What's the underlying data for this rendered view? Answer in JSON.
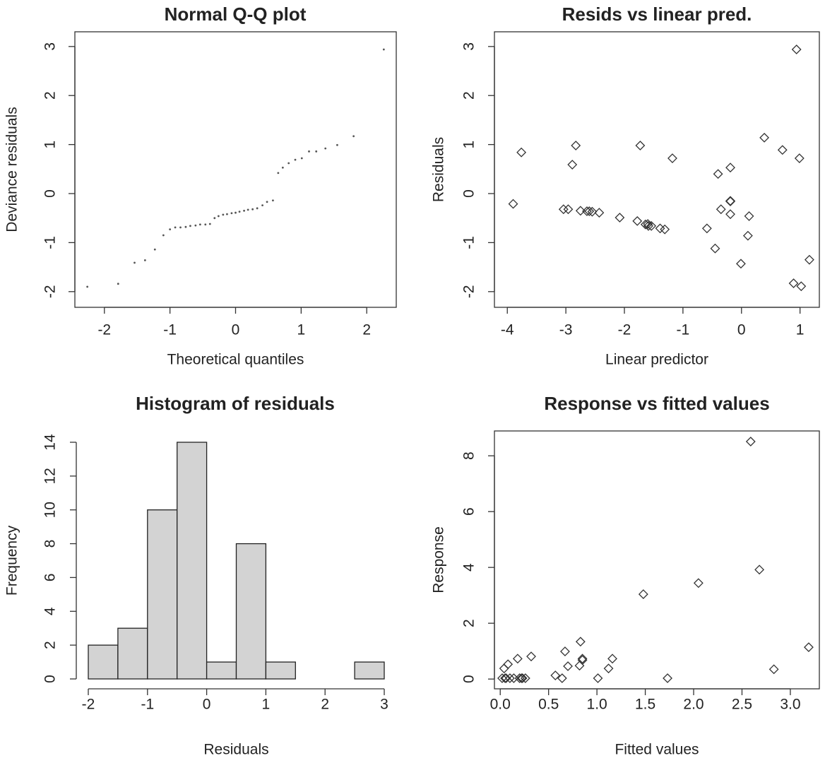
{
  "chart_data": [
    {
      "type": "scatter",
      "title": "Normal Q-Q plot",
      "x_label": "Theoretical quantiles",
      "y_label": "Deviance residuals",
      "marker": "dot",
      "color": "#555555",
      "x": [
        -2.26,
        -1.79,
        -1.54,
        -1.38,
        -1.23,
        -1.1,
        -1.0,
        -0.92,
        -0.84,
        -0.76,
        -0.69,
        -0.61,
        -0.54,
        -0.46,
        -0.39,
        -0.32,
        -0.26,
        -0.19,
        -0.13,
        -0.06,
        0,
        0.06,
        0.13,
        0.19,
        0.26,
        0.33,
        0.41,
        0.48,
        0.57,
        0.65,
        0.72,
        0.81,
        0.91,
        1.01,
        1.12,
        1.23,
        1.37,
        1.55,
        1.8,
        2.26
      ],
      "y": [
        -1.9,
        -1.84,
        -1.41,
        -1.36,
        -1.14,
        -0.85,
        -0.73,
        -0.69,
        -0.69,
        -0.68,
        -0.66,
        -0.65,
        -0.63,
        -0.63,
        -0.62,
        -0.5,
        -0.46,
        -0.43,
        -0.42,
        -0.4,
        -0.39,
        -0.37,
        -0.35,
        -0.33,
        -0.32,
        -0.3,
        -0.24,
        -0.17,
        -0.14,
        0.42,
        0.53,
        0.62,
        0.69,
        0.72,
        0.86,
        0.86,
        0.92,
        0.99,
        1.17,
        2.94
      ],
      "xlim": [
        -2.45,
        2.45
      ],
      "ylim": [
        -2.32,
        3.3
      ],
      "xticks": [
        -2,
        -1,
        0,
        1,
        2
      ],
      "yticks": [
        -2,
        -1,
        0,
        1,
        2,
        3
      ]
    },
    {
      "type": "scatter",
      "title": "Resids vs linear pred.",
      "x_label": "Linear predictor",
      "y_label": "Residuals",
      "marker": "diamond",
      "color": "#333333",
      "x": [
        -3.9,
        -3.76,
        -2.89,
        -3.04,
        -2.96,
        -2.75,
        -2.64,
        -2.6,
        -2.55,
        -2.43,
        -2.83,
        -2.08,
        -1.73,
        -1.78,
        -1.64,
        -1.6,
        -1.59,
        -1.54,
        -1.39,
        -1.31,
        -1.18,
        -0.59,
        -0.45,
        -0.4,
        -0.35,
        -0.19,
        -0.19,
        -0.19,
        -0.19,
        -0.19,
        -0.01,
        0.11,
        0.13,
        0.39,
        0.7,
        0.89,
        0.99,
        0.94,
        1.02,
        1.16
      ],
      "y": [
        -0.21,
        0.84,
        0.59,
        -0.32,
        -0.32,
        -0.35,
        -0.36,
        -0.36,
        -0.37,
        -0.39,
        0.98,
        -0.49,
        0.98,
        -0.56,
        -0.63,
        -0.62,
        -0.66,
        -0.66,
        -0.71,
        -0.73,
        0.72,
        -0.71,
        -1.12,
        0.4,
        -0.32,
        0.53,
        -0.16,
        -0.15,
        -0.15,
        -0.42,
        -1.43,
        -0.86,
        -0.46,
        1.14,
        0.89,
        -1.83,
        0.72,
        2.94,
        -1.89,
        -1.35
      ],
      "xlim": [
        -4.22,
        1.33
      ],
      "ylim": [
        -2.32,
        3.3
      ],
      "xticks": [
        -4,
        -3,
        -2,
        -1,
        0,
        1
      ],
      "yticks": [
        -2,
        -1,
        0,
        1,
        2,
        3
      ]
    },
    {
      "type": "histogram",
      "title": "Histogram of residuals",
      "x_label": "Residuals",
      "y_label": "Frequency",
      "color": "#d3d3d3",
      "bins": [
        -2,
        -1.5,
        -1,
        -0.5,
        0,
        0.5,
        1,
        1.5,
        2,
        2.5,
        3
      ],
      "counts": [
        2,
        3,
        10,
        14,
        1,
        8,
        1,
        0,
        0,
        1
      ],
      "xlim": [
        -2,
        3
      ],
      "ylim": [
        0,
        14
      ],
      "xticks": [
        -2,
        -1,
        0,
        1,
        2,
        3
      ],
      "yticks": [
        0,
        2,
        4,
        6,
        8,
        10,
        12,
        14
      ]
    },
    {
      "type": "scatter",
      "title": "Response vs fitted values",
      "x_label": "Fitted values",
      "y_label": "Response",
      "marker": "diamond",
      "color": "#333333",
      "x": [
        0.02,
        0.04,
        0.05,
        0.06,
        0.08,
        0.1,
        0.14,
        0.18,
        0.2,
        0.22,
        0.23,
        0.26,
        0.32,
        0.57,
        0.64,
        0.67,
        0.7,
        0.82,
        0.83,
        0.85,
        0.85,
        1.01,
        1.12,
        1.16,
        1.48,
        1.73,
        2.05,
        2.59,
        2.68,
        2.83,
        3.19
      ],
      "y": [
        0.03,
        0.38,
        0.03,
        0.03,
        0.53,
        0.03,
        0.03,
        0.73,
        0.03,
        0.03,
        0.03,
        0.03,
        0.81,
        0.13,
        0.03,
        0.99,
        0.46,
        0.48,
        1.34,
        0.73,
        0.68,
        0.03,
        0.38,
        0.73,
        3.04,
        0.03,
        3.44,
        8.51,
        3.92,
        0.35,
        1.14
      ],
      "xlim": [
        -0.06,
        3.3
      ],
      "ylim": [
        -0.35,
        8.89
      ],
      "xticks": [
        {
          "value": 0,
          "label": "0.0"
        },
        0.5,
        {
          "value": 1,
          "label": "1.0"
        },
        1.5,
        {
          "value": 2,
          "label": "2.0"
        },
        2.5,
        {
          "value": 3,
          "label": "3.0"
        }
      ],
      "yticks": [
        0,
        2,
        4,
        6,
        8
      ]
    }
  ]
}
